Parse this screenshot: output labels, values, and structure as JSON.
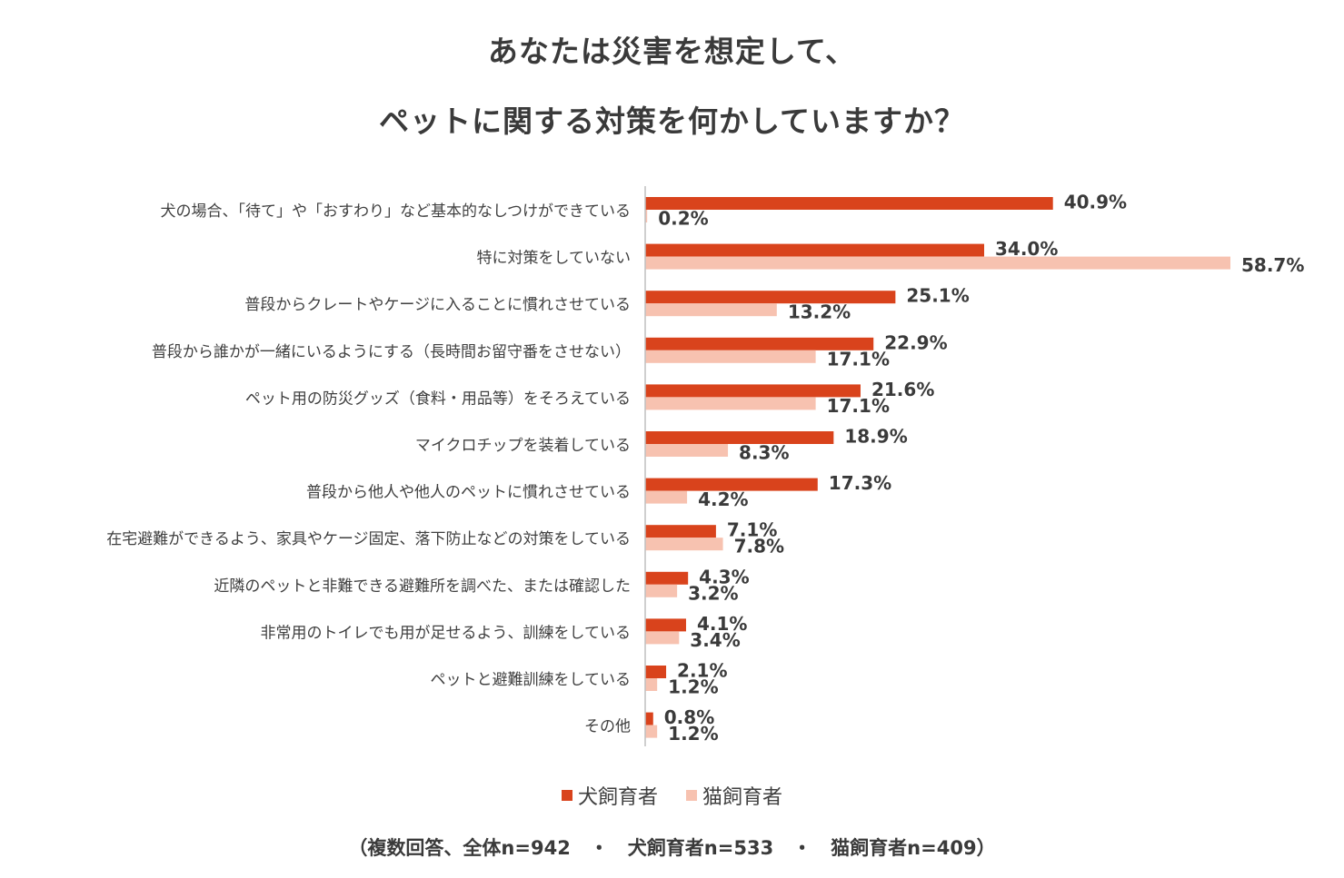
{
  "chart_data": {
    "type": "bar",
    "orientation": "horizontal",
    "title_line1": "あなたは災害を想定して、",
    "title_line2": "ペットに関する対策を何かしていますか？",
    "categories": [
      "犬の場合、「待て」や「おすわり」など基本的なしつけができている",
      "特に対策をしていない",
      "普段からクレートやケージに入ることに慣れさせている",
      "普段から誰かが一緒にいるようにする（長時間お留守番をさせない）",
      "ペット用の防災グッズ（食料・用品等）をそろえている",
      "マイクロチップを装着している",
      "普段から他人や他人のペットに慣れさせている",
      "在宅避難ができるよう、家具やケージ固定、落下防止などの対策をしている",
      "近隣のペットと非難できる避難所を調べた、または確認した",
      "非常用のトイレでも用が足せるよう、訓練をしている",
      "ペットと避難訓練をしている",
      "その他"
    ],
    "series": [
      {
        "name": "犬飼育者",
        "color": "#d9431c",
        "values": [
          40.9,
          34.0,
          25.1,
          22.9,
          21.6,
          18.9,
          17.3,
          7.1,
          4.3,
          4.1,
          2.1,
          0.8
        ]
      },
      {
        "name": "猫飼育者",
        "color": "#f7c2b0",
        "values": [
          0.2,
          58.7,
          13.2,
          17.1,
          17.1,
          8.3,
          4.2,
          7.8,
          3.2,
          3.4,
          1.2,
          1.2
        ]
      }
    ],
    "value_suffix": "%",
    "xlim": [
      0,
      70
    ],
    "legend_position": "bottom",
    "grid": false
  },
  "note": "（複数回答、全体n=942　・　犬飼育者n=533　・　猫飼育者n=409）"
}
